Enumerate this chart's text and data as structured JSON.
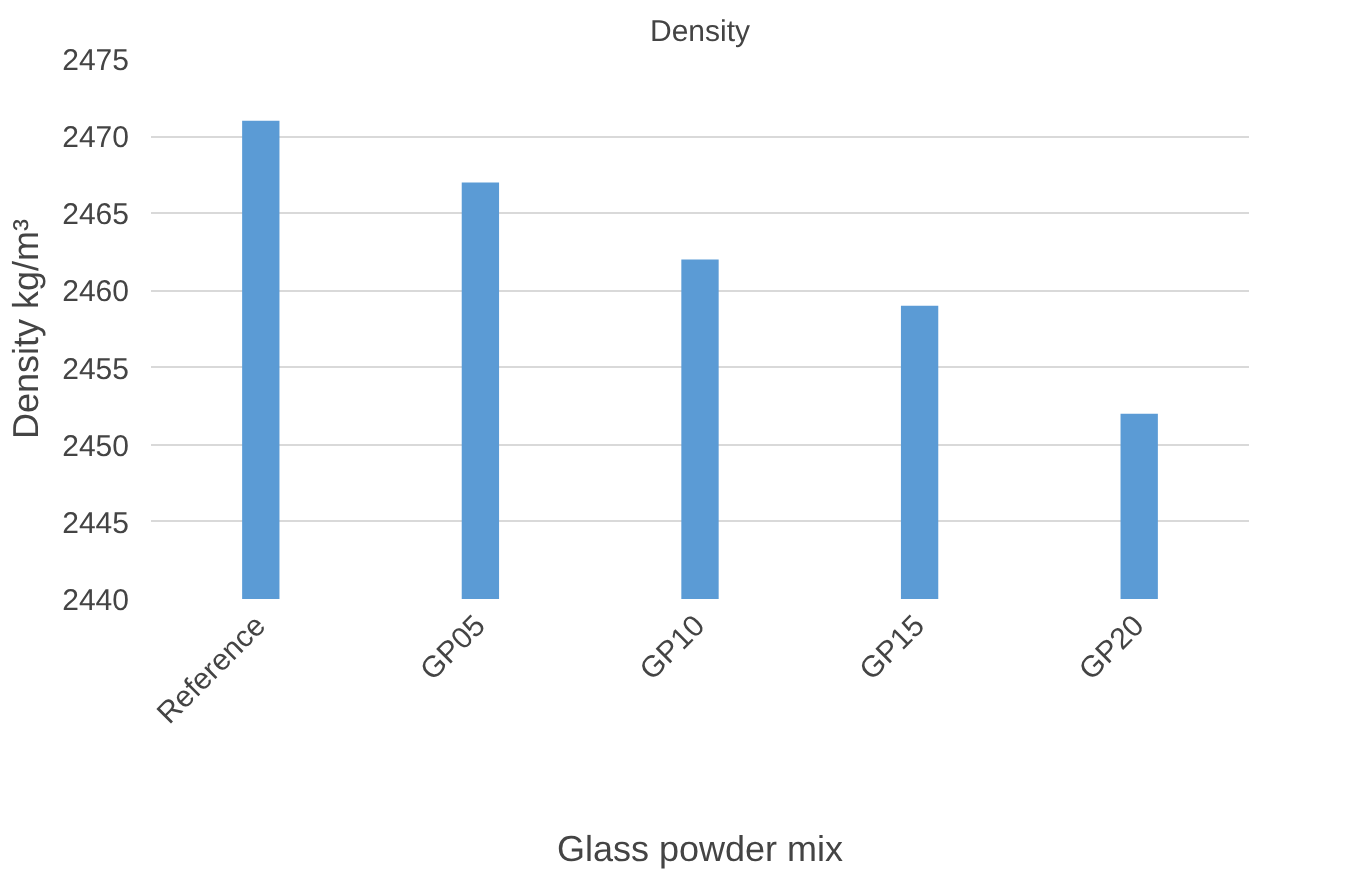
{
  "chart_data": {
    "type": "bar",
    "title": "Density",
    "xlabel": "Glass powder mix",
    "ylabel": "Density kg/m³",
    "categories": [
      "Reference",
      "GP05",
      "GP10",
      "GP15",
      "GP20"
    ],
    "values": [
      2471,
      2467,
      2462,
      2459,
      2452
    ],
    "color": "#5b9bd5",
    "ylim": [
      2440,
      2475
    ],
    "yticks": [
      2440,
      2445,
      2450,
      2455,
      2460,
      2465,
      2470,
      2475
    ],
    "grid": "y"
  }
}
